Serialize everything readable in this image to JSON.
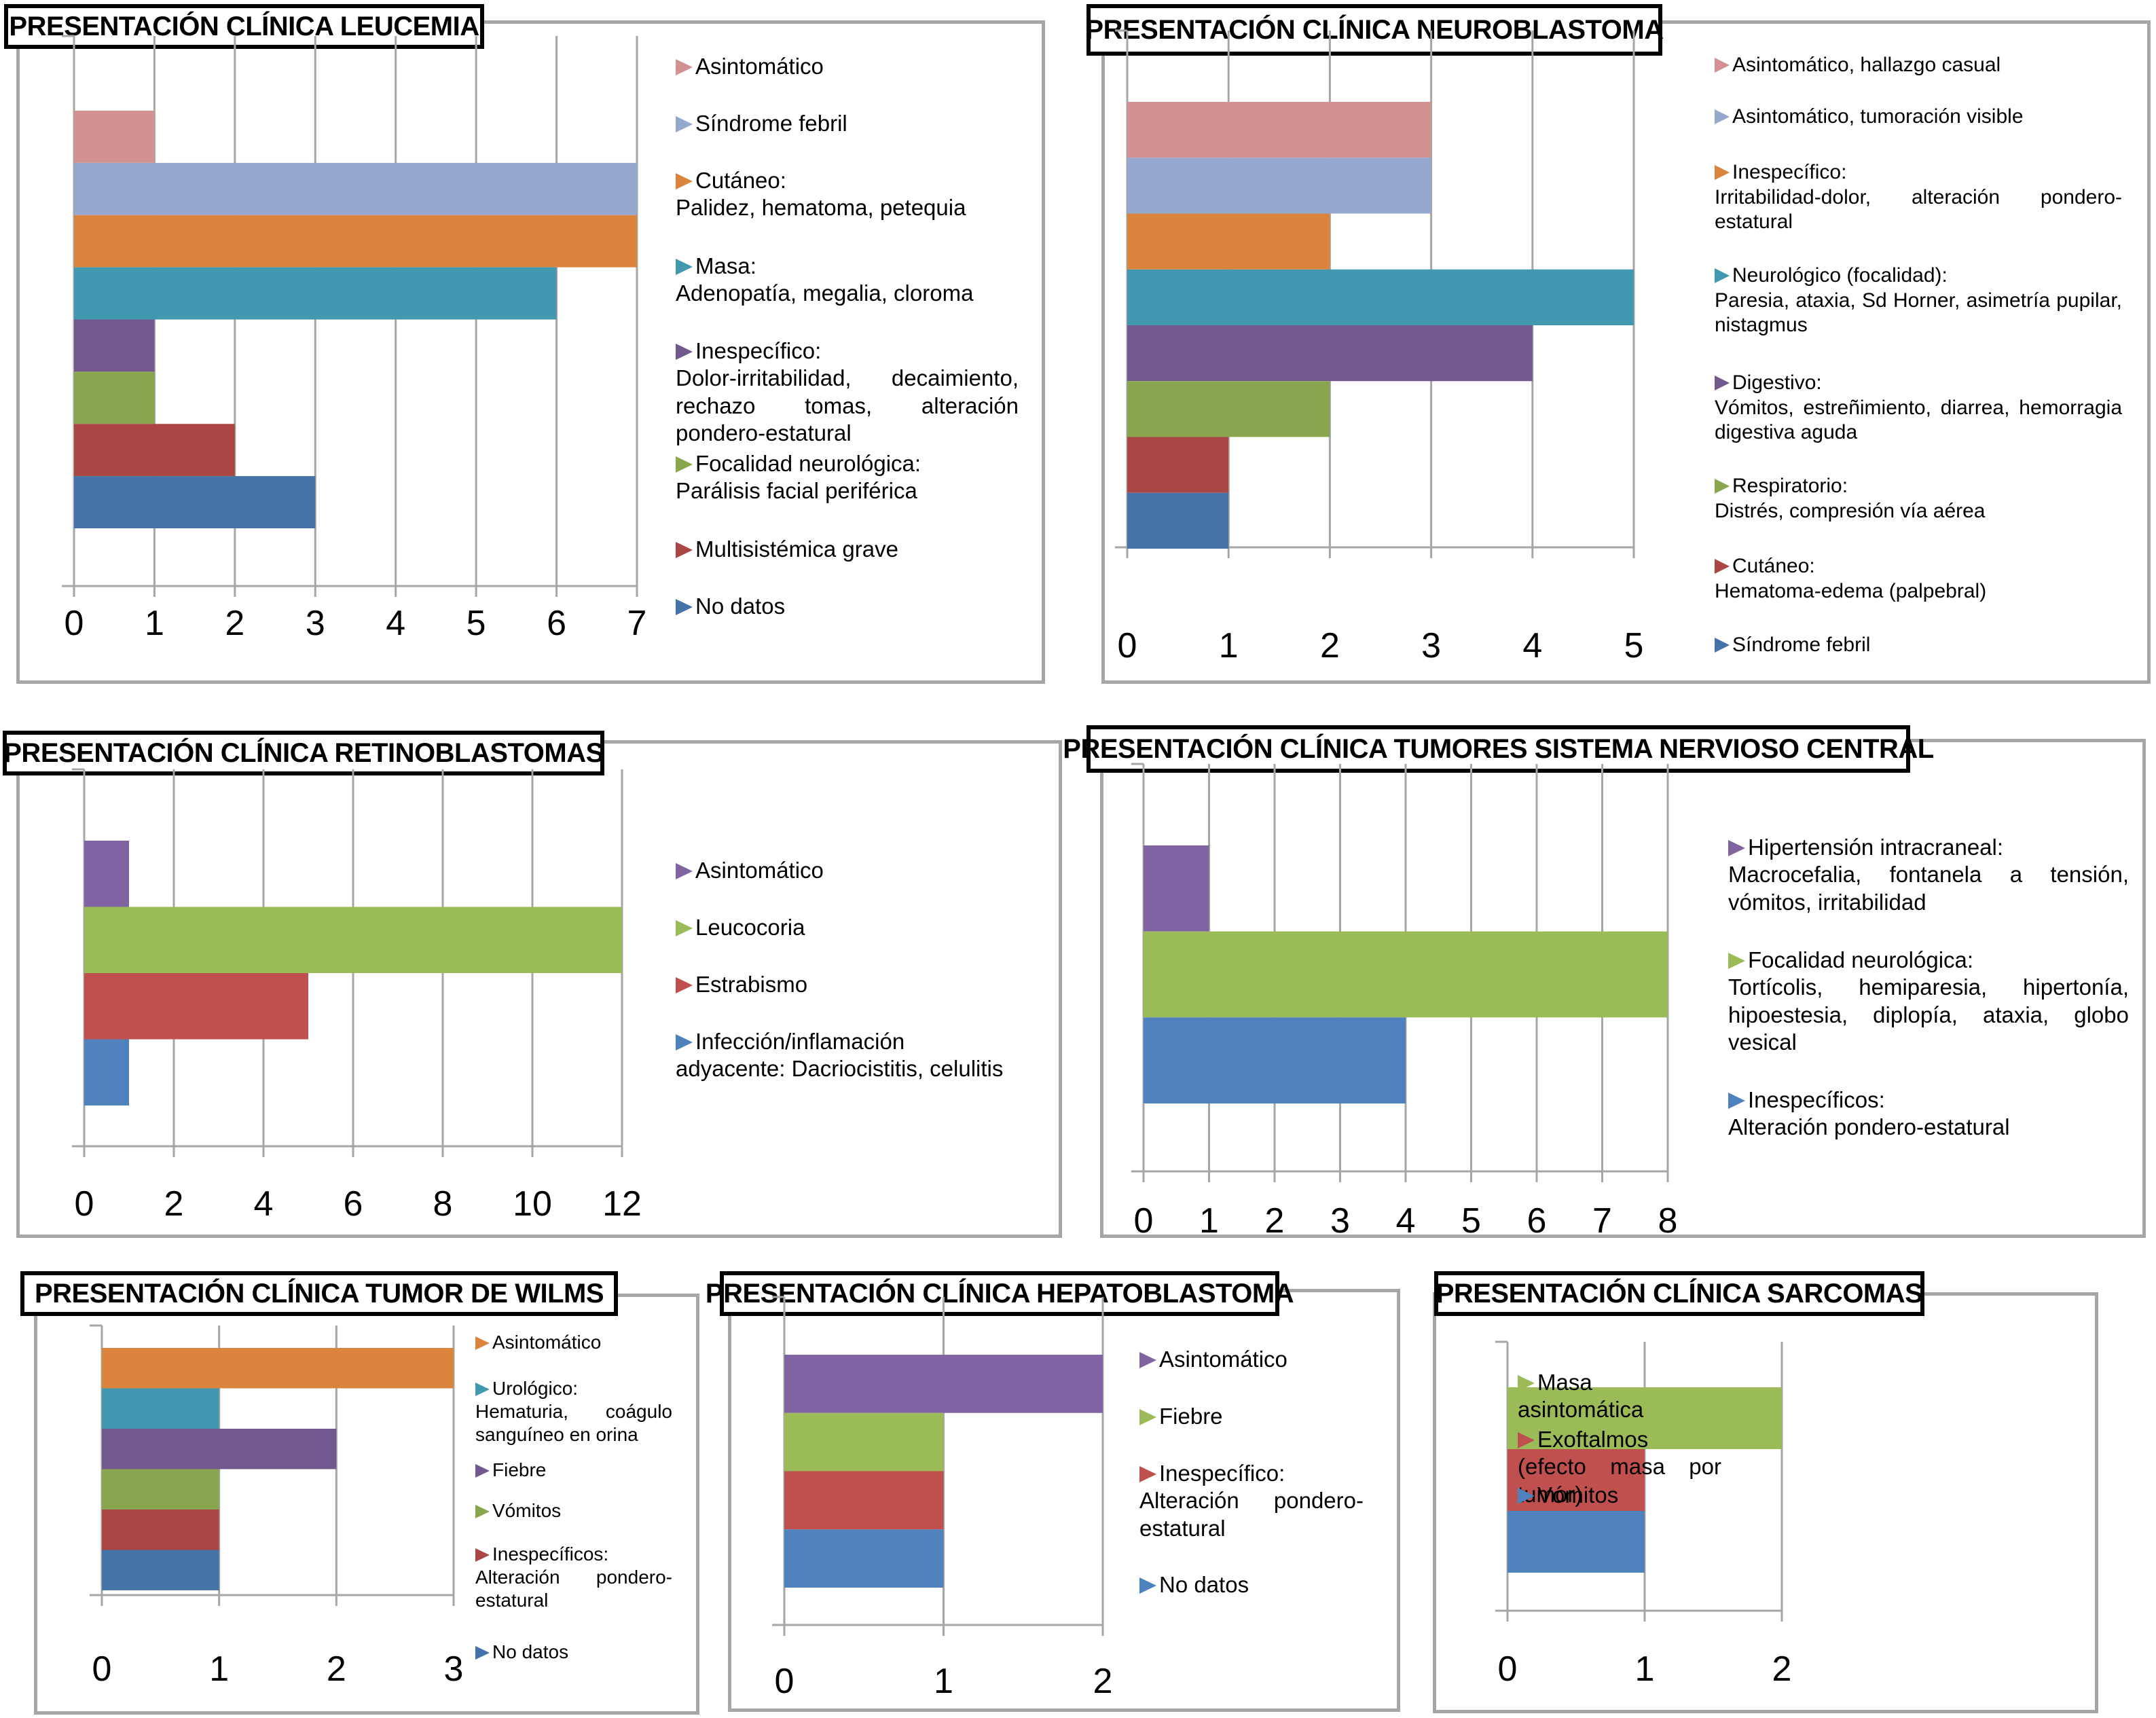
{
  "figure": {
    "panels": [
      {
        "id": "leucemia",
        "title": "PRESENTACIÓN CLÍNICA LEUCEMIA"
      },
      {
        "id": "neuroblastoma",
        "title": "PRESENTACIÓN CLÍNICA NEUROBLASTOMA"
      },
      {
        "id": "retinoblastomas",
        "title": "PRESENTACIÓN CLÍNICA RETINOBLASTOMAS"
      },
      {
        "id": "snc",
        "title": "PRESENTACIÓN CLÍNICA TUMORES SISTEMA NERVIOSO CENTRAL"
      },
      {
        "id": "wilms",
        "title": "PRESENTACIÓN CLÍNICA TUMOR DE WILMS"
      },
      {
        "id": "hepatoblastoma",
        "title": "PRESENTACIÓN CLÍNICA HEPATOBLASTOMA"
      },
      {
        "id": "sarcomas",
        "title": "PRESENTACIÓN CLÍNICA SARCOMAS"
      }
    ]
  },
  "chart_data": [
    {
      "type": "bar",
      "orientation": "horizontal",
      "title": "PRESENTACIÓN CLÍNICA LEUCEMIA",
      "xlabel": "",
      "ylabel": "",
      "xlim": [
        0,
        7
      ],
      "xticks": [
        "0",
        "1",
        "2",
        "3",
        "4",
        "5",
        "6",
        "7"
      ],
      "grid": true,
      "legend": "right",
      "series": [
        {
          "name": "Asintomático",
          "detail": "",
          "value": 1,
          "color": "#d39292"
        },
        {
          "name": "Síndrome febril",
          "detail": "",
          "value": 7,
          "color": "#95a9d0"
        },
        {
          "name": "Cutáneo:",
          "detail": "Palidez, hematoma, petequia",
          "value": 7,
          "color": "#db843d"
        },
        {
          "name": "Masa:",
          "detail": "Adenopatía, megalia, cloroma",
          "value": 6,
          "color": "#4298af"
        },
        {
          "name": "Inespecífico:",
          "detail": "Dolor-irritabilidad, decaimiento, rechazo tomas, alteración pondero-estatural",
          "value": 1,
          "color": "#71588f"
        },
        {
          "name": "Focalidad neurológica:",
          "detail": "Parálisis facial periférica",
          "value": 1,
          "color": "#89a54e"
        },
        {
          "name": "Multisistémica grave",
          "detail": "",
          "value": 2,
          "color": "#aa4643"
        },
        {
          "name": "No datos",
          "detail": "",
          "value": 3,
          "color": "#4572a7"
        }
      ]
    },
    {
      "type": "bar",
      "orientation": "horizontal",
      "title": "PRESENTACIÓN CLÍNICA NEUROBLASTOMA",
      "xlabel": "",
      "ylabel": "",
      "xlim": [
        0,
        5
      ],
      "xticks": [
        "0",
        "1",
        "2",
        "3",
        "4",
        "5"
      ],
      "grid": true,
      "legend": "right",
      "series": [
        {
          "name": "Asintomático, hallazgo casual",
          "detail": "",
          "value": 3,
          "color": "#d39292"
        },
        {
          "name": "Asintomático, tumoración visible",
          "detail": "",
          "value": 3,
          "color": "#95a9d0"
        },
        {
          "name": "Inespecífico:",
          "detail": "Irritabilidad-dolor, alteración pondero-estatural",
          "value": 2,
          "color": "#db843d"
        },
        {
          "name": "Neurológico (focalidad):",
          "detail": "Paresia, ataxia, Sd Horner, asimetría pupilar, nistagmus",
          "value": 5,
          "color": "#4298af"
        },
        {
          "name": "Digestivo:",
          "detail": "Vómitos, estreñimiento, diarrea, hemorragia digestiva aguda",
          "value": 4,
          "color": "#71588f"
        },
        {
          "name": "Respiratorio:",
          "detail": "Distrés, compresión vía aérea",
          "value": 2,
          "color": "#89a54e"
        },
        {
          "name": "Cutáneo:",
          "detail": "Hematoma-edema (palpebral)",
          "value": 1,
          "color": "#aa4643"
        },
        {
          "name": "Síndrome febril",
          "detail": "",
          "value": 1,
          "color": "#4572a7"
        }
      ]
    },
    {
      "type": "bar",
      "orientation": "horizontal",
      "title": "PRESENTACIÓN CLÍNICA RETINOBLASTOMAS",
      "xlabel": "",
      "ylabel": "",
      "xlim": [
        0,
        12
      ],
      "xticks": [
        "0",
        "2",
        "4",
        "6",
        "8",
        "10",
        "12"
      ],
      "grid": true,
      "legend": "right",
      "series": [
        {
          "name": "Asintomático",
          "detail": "",
          "value": 1,
          "color": "#8064a2"
        },
        {
          "name": "Leucocoria",
          "detail": "",
          "value": 12,
          "color": "#9bbb59"
        },
        {
          "name": "Estrabismo",
          "detail": "",
          "value": 5,
          "color": "#c0504d"
        },
        {
          "name": "Infección/inflamación adyacente: Dacriocistitis, celulitis",
          "detail": "",
          "value": 1,
          "color": "#4f81bd"
        }
      ]
    },
    {
      "type": "bar",
      "orientation": "horizontal",
      "title": "PRESENTACIÓN CLÍNICA TUMORES SISTEMA NERVIOSO CENTRAL",
      "xlabel": "",
      "ylabel": "",
      "xlim": [
        0,
        8
      ],
      "xticks": [
        "0",
        "1",
        "2",
        "3",
        "4",
        "5",
        "6",
        "7",
        "8"
      ],
      "grid": true,
      "legend": "right",
      "series": [
        {
          "name": "Hipertensión intracraneal:",
          "detail": "Macrocefalia, fontanela a tensión, vómitos, irritabilidad",
          "value": 1,
          "color": "#8064a2"
        },
        {
          "name": "Focalidad neurológica:",
          "detail": "Tortícolis, hemiparesia, hipertonía, hipoestesia, diplopía, ataxia, globo vesical",
          "value": 8,
          "color": "#9bbb59"
        },
        {
          "name": "Inespecíficos:",
          "detail": "Alteración pondero-estatural",
          "value": 4,
          "color": "#4f81bd"
        }
      ]
    },
    {
      "type": "bar",
      "orientation": "horizontal",
      "title": "PRESENTACIÓN CLÍNICA TUMOR DE WILMS",
      "xlabel": "",
      "ylabel": "",
      "xlim": [
        0,
        3
      ],
      "xticks": [
        "0",
        "1",
        "2",
        "3"
      ],
      "grid": true,
      "legend": "right",
      "series": [
        {
          "name": "Asintomático",
          "detail": "",
          "value": 3,
          "color": "#db843d"
        },
        {
          "name": "Urológico:",
          "detail": "Hematuria, coágulo sanguíneo en orina",
          "value": 1,
          "color": "#4298af"
        },
        {
          "name": "Fiebre",
          "detail": "",
          "value": 2,
          "color": "#71588f"
        },
        {
          "name": "Vómitos",
          "detail": "",
          "value": 1,
          "color": "#89a54e"
        },
        {
          "name": "Inespecíficos:",
          "detail": "Alteración pondero-estatural",
          "value": 1,
          "color": "#aa4643"
        },
        {
          "name": "No datos",
          "detail": "",
          "value": 1,
          "color": "#4572a7"
        }
      ]
    },
    {
      "type": "bar",
      "orientation": "horizontal",
      "title": "PRESENTACIÓN CLÍNICA HEPATOBLASTOMA",
      "xlabel": "",
      "ylabel": "",
      "xlim": [
        0,
        2
      ],
      "xticks": [
        "0",
        "1",
        "2"
      ],
      "grid": true,
      "legend": "right",
      "series": [
        {
          "name": "Asintomático",
          "detail": "",
          "value": 2,
          "color": "#8064a2"
        },
        {
          "name": "Fiebre",
          "detail": "",
          "value": 1,
          "color": "#9bbb59"
        },
        {
          "name": "Inespecífico:",
          "detail": "Alteración pondero-estatural",
          "value": 1,
          "color": "#c0504d"
        },
        {
          "name": "No datos",
          "detail": "",
          "value": 1,
          "color": "#4f81bd"
        }
      ]
    },
    {
      "type": "bar",
      "orientation": "horizontal",
      "title": "PRESENTACIÓN CLÍNICA SARCOMAS",
      "xlabel": "",
      "ylabel": "",
      "xlim": [
        0,
        2
      ],
      "xticks": [
        "0",
        "1",
        "2"
      ],
      "grid": true,
      "legend": "right",
      "series": [
        {
          "name": "Masa asintomática",
          "detail": "",
          "value": 2,
          "color": "#9bbb59"
        },
        {
          "name": "Exoftalmos (efecto masa por tumor)",
          "detail": "",
          "value": 1,
          "color": "#c0504d"
        },
        {
          "name": "Vómitos",
          "detail": "",
          "value": 1,
          "color": "#4f81bd"
        }
      ]
    }
  ]
}
